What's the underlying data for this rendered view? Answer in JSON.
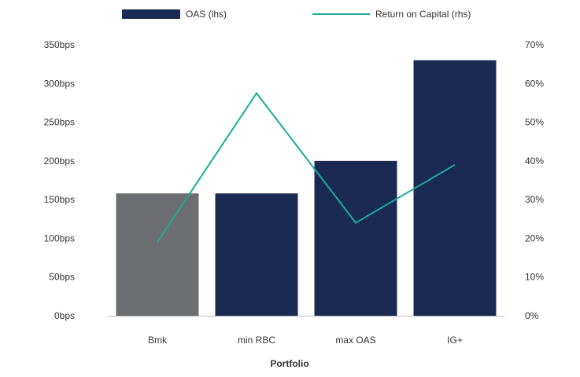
{
  "chart_data": {
    "type": "bar",
    "categories": [
      "Bmk",
      "min RBC",
      "max OAS",
      "IG+"
    ],
    "xlabel": "Portfolio",
    "series": [
      {
        "name": "OAS (lhs)",
        "type": "bar",
        "axis": "left",
        "values": [
          158,
          158,
          200,
          330
        ],
        "colors": [
          "#6d6e71",
          "#1b2a52",
          "#1b2a52",
          "#1b2a52"
        ]
      },
      {
        "name": "Return on Capital (rhs)",
        "type": "line",
        "axis": "right",
        "values": [
          19,
          57.5,
          24,
          39
        ],
        "color": "#1aab9b"
      }
    ],
    "y_left": {
      "ylim": [
        0,
        350
      ],
      "ticks": [
        "0bps",
        "50bps",
        "100bps",
        "150bps",
        "200bps",
        "250bps",
        "300bps",
        "350bps"
      ]
    },
    "y_right": {
      "ylim": [
        0,
        70
      ],
      "ticks": [
        "0%",
        "10%",
        "20%",
        "30%",
        "40%",
        "50%",
        "60%",
        "70%"
      ]
    },
    "grid": false,
    "legend": "top"
  }
}
